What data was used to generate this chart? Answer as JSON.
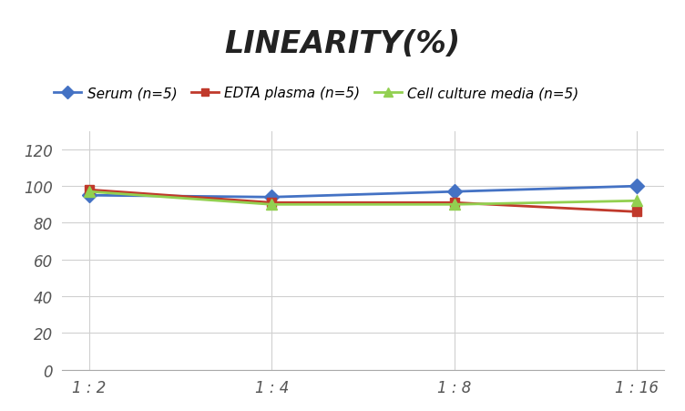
{
  "title": "LINEARITY(%)",
  "x_labels": [
    "1 : 2",
    "1 : 4",
    "1 : 8",
    "1 : 16"
  ],
  "x_values": [
    0,
    1,
    2,
    3
  ],
  "series": [
    {
      "label": "Serum (n=5)",
      "values": [
        95,
        94,
        97,
        100
      ],
      "color": "#4472C4",
      "marker": "D",
      "markersize": 8,
      "linewidth": 2.0,
      "zorder": 3
    },
    {
      "label": "EDTA plasma (n=5)",
      "values": [
        98,
        91,
        91,
        86
      ],
      "color": "#C0392B",
      "marker": "s",
      "markersize": 7,
      "linewidth": 2.0,
      "zorder": 3
    },
    {
      "label": "Cell culture media (n=5)",
      "values": [
        97,
        90,
        90,
        92
      ],
      "color": "#92D050",
      "marker": "^",
      "markersize": 8,
      "linewidth": 2.0,
      "zorder": 3
    }
  ],
  "ylim": [
    0,
    130
  ],
  "yticks": [
    0,
    20,
    40,
    60,
    80,
    100,
    120
  ],
  "background_color": "#FFFFFF",
  "grid_color": "#D0D0D0",
  "title_fontsize": 24,
  "tick_fontsize": 12,
  "legend_fontsize": 11
}
